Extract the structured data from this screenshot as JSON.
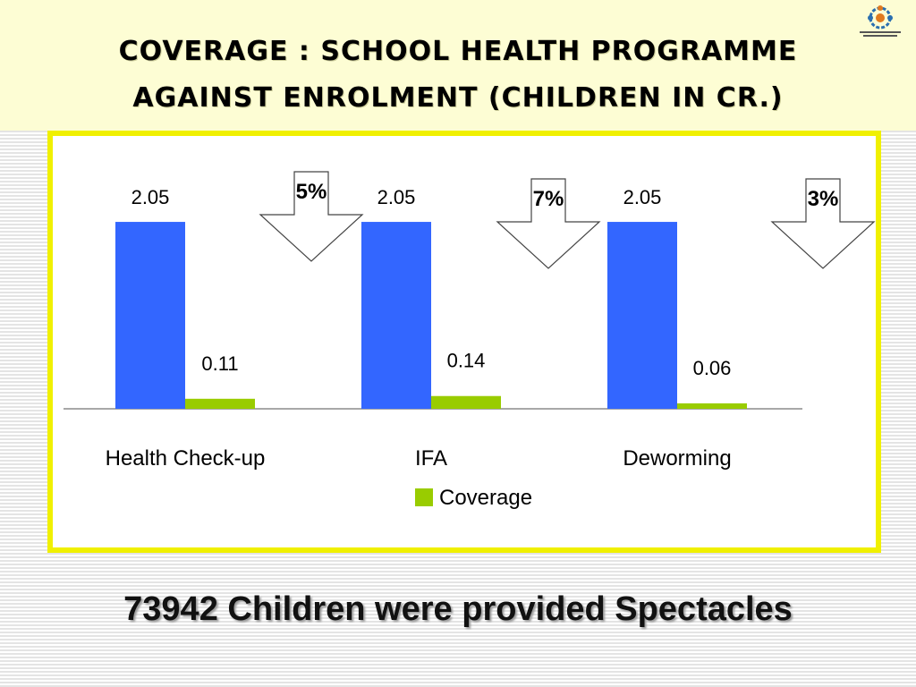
{
  "title": {
    "line1": "COVERAGE : SCHOOL  HEALTH  PROGRAMME",
    "line2": "AGAINST  ENROLMENT  (CHILDREN IN CR.)"
  },
  "logo_icon": "emblem-logo-icon",
  "colors": {
    "enrolment": "#3366ff",
    "coverage": "#99cc00",
    "frame": "#f0f000",
    "title_band": "#fdfdd4"
  },
  "chart_data": {
    "type": "bar",
    "categories": [
      "Health Check-up",
      "IFA",
      "Deworming"
    ],
    "series": [
      {
        "values": [
          2.05,
          2.05,
          2.05
        ]
      },
      {
        "name": "Coverage",
        "values": [
          0.11,
          0.14,
          0.06
        ]
      }
    ],
    "data_labels": {
      "enrolment": [
        "2.05",
        "2.05",
        "2.05"
      ],
      "coverage": [
        "0.11",
        "0.14",
        "0.06"
      ]
    },
    "annotations": [
      "5%",
      "7%",
      "3%"
    ],
    "legend": {
      "placement": "bottom",
      "entries": [
        "Coverage"
      ]
    },
    "ylim": [
      0,
      2.6
    ],
    "grid": false
  },
  "footer": "73942 Children were provided Spectacles"
}
